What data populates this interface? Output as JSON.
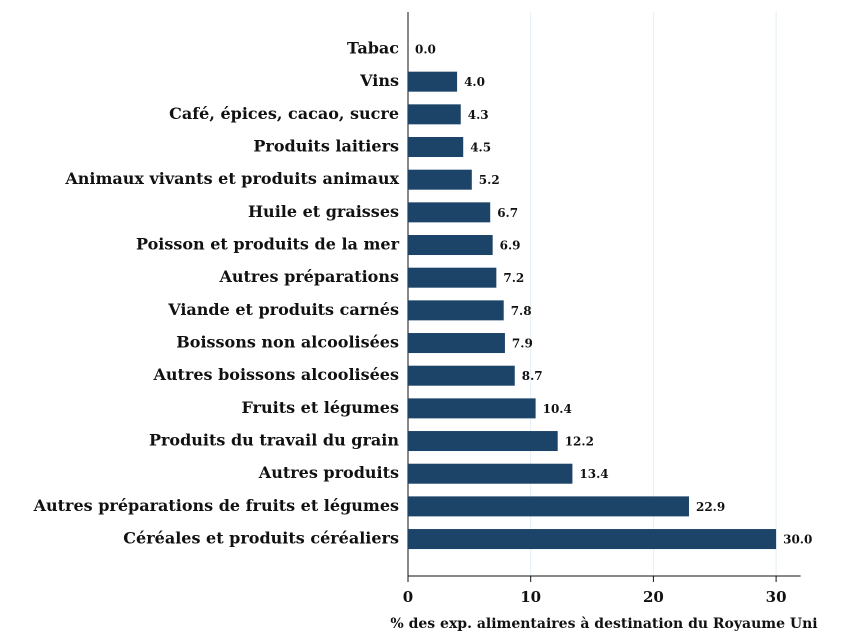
{
  "chart_data": {
    "type": "barh",
    "xlabel": "% des exp. alimentaires à destination du Royaume Uni",
    "categories": [
      "Tabac",
      "Vins",
      "Café, épices, cacao, sucre",
      "Produits laitiers",
      "Animaux vivants et produits animaux",
      "Huile et graisses",
      "Poisson et produits de la mer",
      "Autres préparations",
      "Viande et produits carnés",
      "Boissons non alcoolisées",
      "Autres boissons alcoolisées",
      "Fruits et légumes",
      "Produits du travail du grain",
      "Autres produits",
      "Autres préparations de fruits et légumes",
      "Céréales et produits céréaliers"
    ],
    "values": [
      0.0,
      4.0,
      4.3,
      4.5,
      5.2,
      6.7,
      6.9,
      7.2,
      7.8,
      7.9,
      8.7,
      10.4,
      12.2,
      13.4,
      22.9,
      30.0
    ],
    "value_labels": [
      "0.0",
      "4.0",
      "4.3",
      "4.5",
      "5.2",
      "6.7",
      "6.9",
      "7.2",
      "7.8",
      "7.9",
      "8.7",
      "10.4",
      "12.2",
      "13.4",
      "22.9",
      "30.0"
    ],
    "color": "#1c4468",
    "xlim": [
      0,
      32
    ],
    "xticks": [
      0,
      10,
      20,
      30
    ],
    "grid": true
  }
}
